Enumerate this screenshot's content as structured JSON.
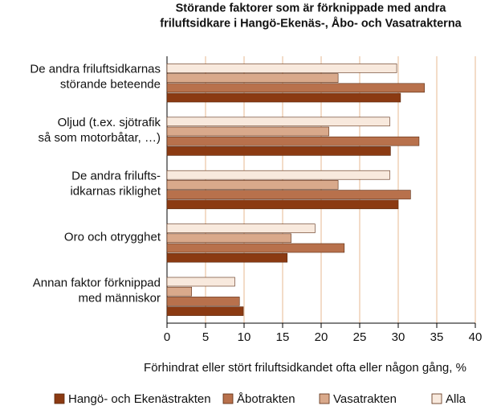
{
  "chart_data": {
    "type": "barh",
    "title": "Störande faktorer som är förknippade med andra\nfriluftsidkare i Hangö-Ekenäs-, Åbo- och Vasatrakterna",
    "xlabel": "Förhindrat eller stört friluftsidkandet ofta eller någon gång, %",
    "categories": [
      "De andra friluftsidkarnas\nstörande beteende",
      "Oljud (t.ex. sjötrafik\nså som motorbåtar, …)",
      "De andra frilufts-\nidkarnas riklighet",
      "Oro och otrygghet",
      "Annan faktor förknippad\nmed människor"
    ],
    "series": [
      {
        "name": "Hangö- och Ekenästrakten",
        "color": "#8b3a12",
        "values": [
          30.3,
          29.0,
          30.0,
          15.6,
          9.9
        ]
      },
      {
        "name": "Åbotrakten",
        "color": "#b8714c",
        "values": [
          33.4,
          32.7,
          31.6,
          23.0,
          9.4
        ]
      },
      {
        "name": "Vasatrakten",
        "color": "#d9a98b",
        "values": [
          22.2,
          21.0,
          22.2,
          16.1,
          3.2
        ]
      },
      {
        "name": "Alla",
        "color": "#f8e9dd",
        "values": [
          29.8,
          28.9,
          28.9,
          19.2,
          8.8
        ]
      }
    ],
    "xlim": [
      0,
      40
    ],
    "xticks": [
      0,
      5,
      10,
      15,
      20,
      25,
      30,
      35,
      40
    ],
    "grid": true,
    "legend": "bottom"
  }
}
